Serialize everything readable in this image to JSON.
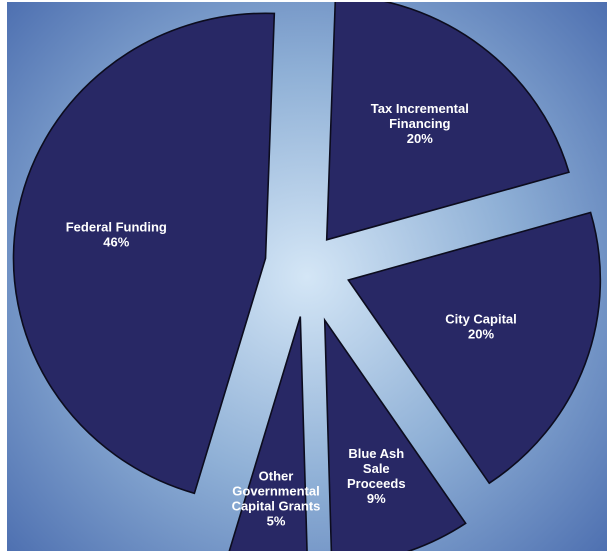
{
  "colors": {
    "background_center": "#d4e6f6",
    "background_mid": "#8fb0d6",
    "background_edge": "#4d6fb0",
    "slice_fill": "#282865",
    "slice_stroke": "#0c0c1e",
    "label_color": "#ffffff"
  },
  "chart_data": {
    "type": "pie",
    "exploded": true,
    "grid": false,
    "legend": "none",
    "slices": [
      {
        "lines": [
          "Tax Incremental",
          "Financing",
          "20%"
        ],
        "value": 20
      },
      {
        "lines": [
          "City Capital",
          "20%"
        ],
        "value": 20
      },
      {
        "lines": [
          "Blue Ash",
          "Sale",
          "Proceeds",
          "9%"
        ],
        "value": 9
      },
      {
        "lines": [
          "Other",
          "Governmental",
          "Capital Grants",
          "5%"
        ],
        "value": 5
      },
      {
        "lines": [
          "Federal Funding",
          "46%"
        ],
        "value": 46
      }
    ]
  }
}
